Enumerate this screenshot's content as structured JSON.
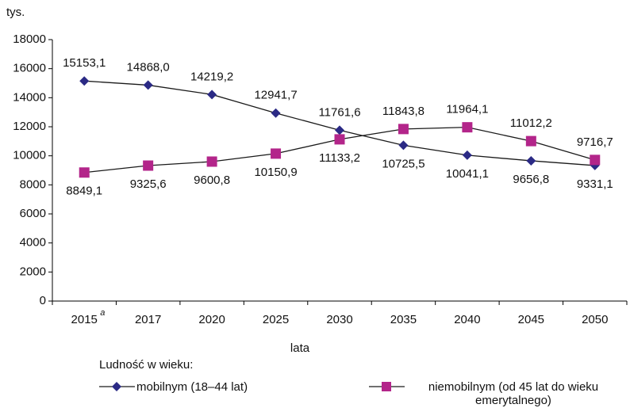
{
  "chart_data": {
    "type": "line",
    "y_unit": "tys.",
    "x_label": "lata",
    "legend_title": "Ludność w wieku:",
    "categories": [
      "2015",
      "2017",
      "2020",
      "2025",
      "2030",
      "2035",
      "2040",
      "2045",
      "2050"
    ],
    "first_category_note": "a",
    "line_color": "#1a1a1a",
    "series": [
      {
        "name": "mobilnym (18–44 lat)",
        "color": "#2b2a85",
        "marker": "diamond",
        "values": [
          15153.1,
          14868.0,
          14219.2,
          12941.7,
          11761.6,
          10725.5,
          10041.1,
          9656.8,
          9331.1
        ],
        "value_labels": [
          "15153,1",
          "14868,0",
          "14219,2",
          "12941,7",
          "11761,6",
          "10725,5",
          "10041,1",
          "9656,8",
          "9331,1"
        ]
      },
      {
        "name": "niemobilnym (od 45 lat do wieku emerytalnego)",
        "color": "#b3258a",
        "marker": "square",
        "values": [
          8849.1,
          9325.6,
          9600.8,
          10150.9,
          11133.2,
          11843.8,
          11964.1,
          11012.2,
          9716.7
        ],
        "value_labels": [
          "8849,1",
          "9325,6",
          "9600,8",
          "10150,9",
          "11133,2",
          "11843,8",
          "11964,1",
          "11012,2",
          "9716,7"
        ]
      }
    ],
    "ylim": [
      0,
      18000
    ],
    "yticks": [
      0,
      2000,
      4000,
      6000,
      8000,
      10000,
      12000,
      14000,
      16000,
      18000
    ],
    "grid": false
  }
}
